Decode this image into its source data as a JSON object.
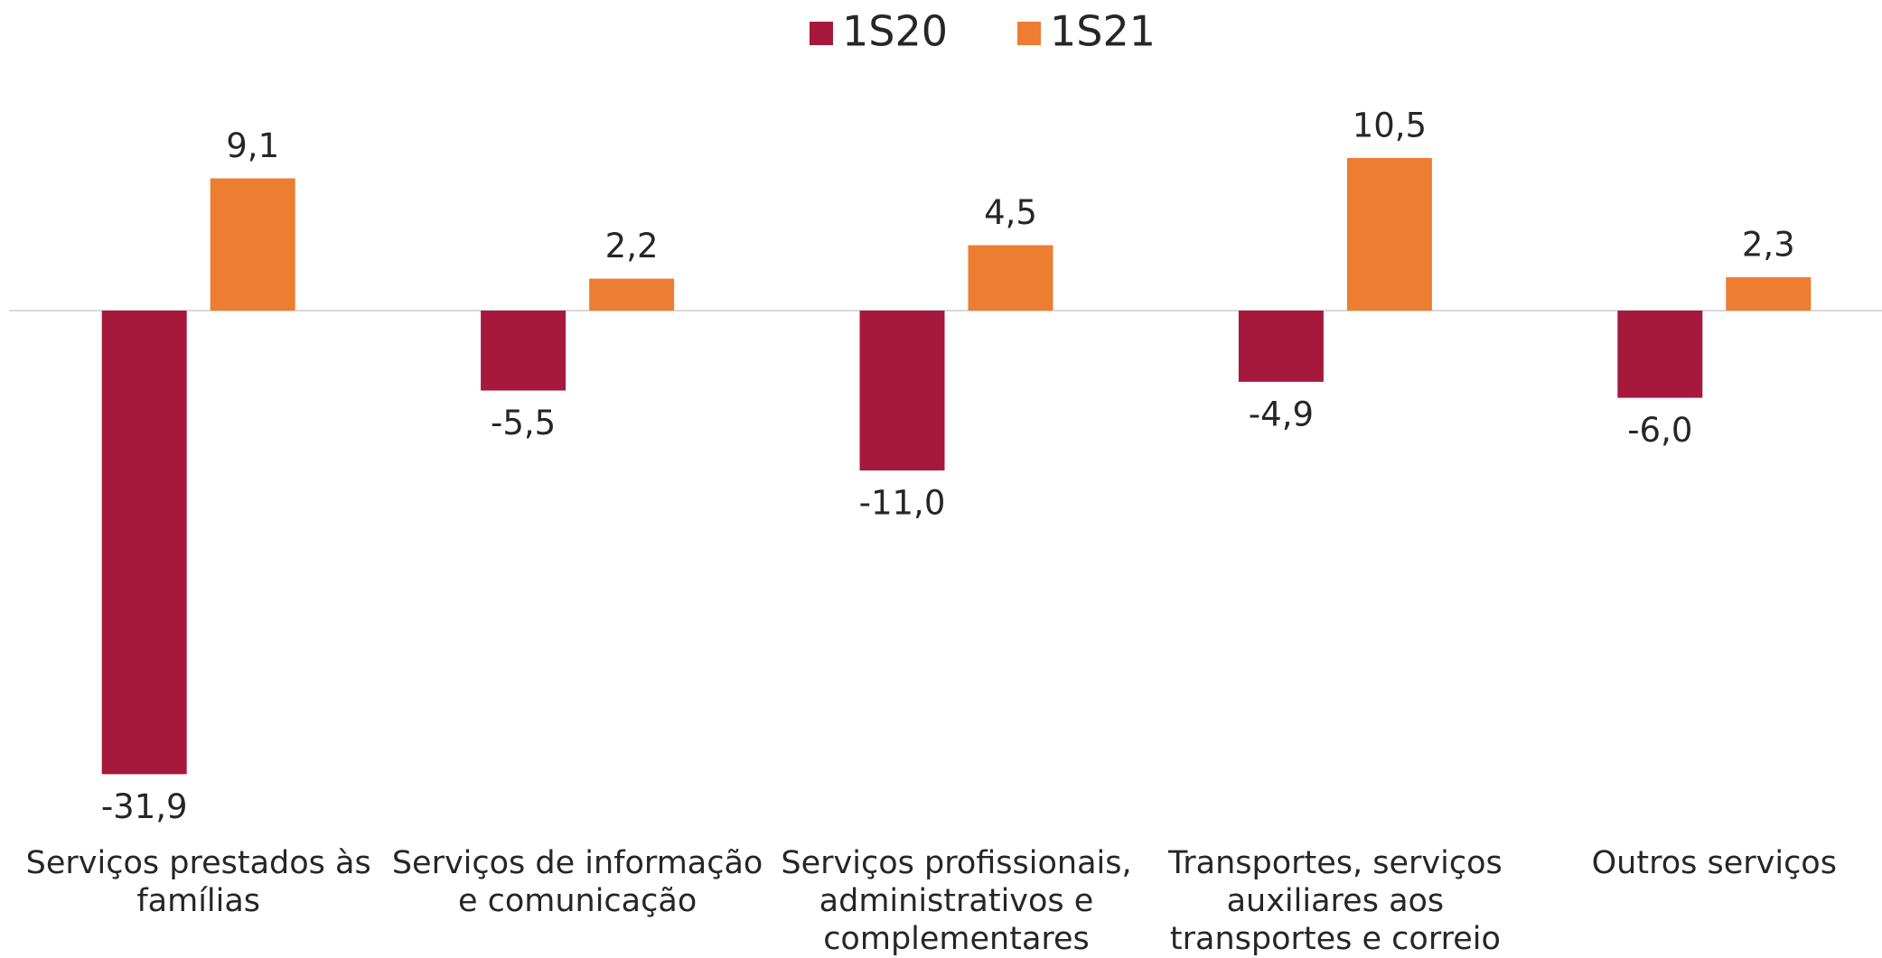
{
  "chart_data": {
    "type": "bar",
    "categories": [
      "Serviços prestados às famílias",
      "Serviços de informação e comunicação",
      "Serviços profissionais, administrativos e complementares",
      "Transportes, serviços auxiliares aos transportes e correio",
      "Outros serviços"
    ],
    "series": [
      {
        "name": "1S20",
        "color": "#a6193c",
        "values": [
          -31.9,
          -5.5,
          -11.0,
          -4.9,
          -6.0
        ],
        "value_labels": [
          "-31,9",
          "-5,5",
          "-11,0",
          "-4,9",
          "-6,0"
        ]
      },
      {
        "name": "1S21",
        "color": "#ed7d31",
        "values": [
          9.1,
          2.2,
          4.5,
          10.5,
          2.3
        ],
        "value_labels": [
          "9,1",
          "2,2",
          "4,5",
          "10,5",
          "2,3"
        ]
      }
    ],
    "legend": "top"
  }
}
